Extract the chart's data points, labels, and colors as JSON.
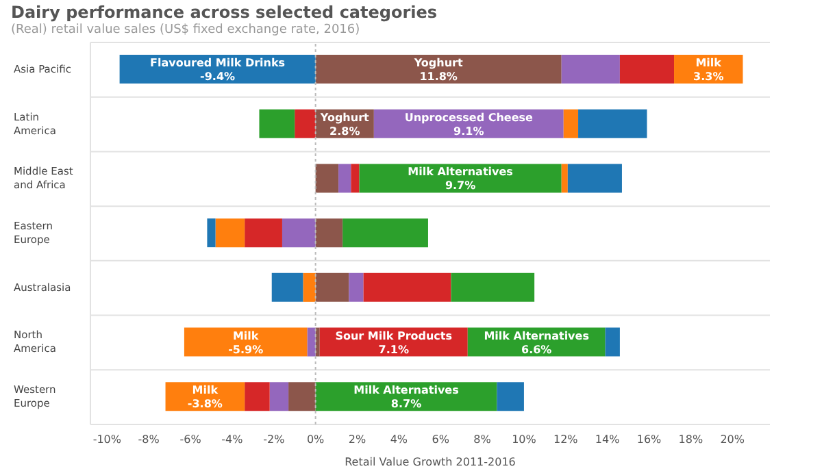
{
  "chart_data": {
    "type": "bar",
    "orientation": "horizontal",
    "stacked": true,
    "title": "Dairy performance across selected categories",
    "subtitle": "(Real) retail value sales (US$ fixed exchange rate, 2016)",
    "xlabel": "Retail Value Growth 2011-2016",
    "categories": [
      "Asia Pacific",
      "Latin America",
      "Middle East and Africa",
      "Eastern Europe",
      "Australasia",
      "North America",
      "Western Europe"
    ],
    "series": [
      {
        "name": "Yoghurt",
        "color": "#8c564b",
        "values": [
          11.8,
          2.8,
          1.1,
          1.3,
          1.6,
          0.2,
          -1.3
        ],
        "value_labels": [
          "11.8%",
          "2.8%",
          null,
          null,
          null,
          null,
          null
        ]
      },
      {
        "name": "Unprocessed Cheese",
        "color": "#9467bd",
        "values": [
          2.8,
          9.1,
          0.6,
          -1.6,
          0.7,
          -0.4,
          -0.9
        ],
        "value_labels": [
          null,
          "9.1%",
          null,
          null,
          null,
          null,
          null
        ]
      },
      {
        "name": "Sour Milk Products",
        "color": "#d62728",
        "values": [
          2.6,
          -1.0,
          0.4,
          -1.8,
          4.2,
          7.1,
          -1.2
        ],
        "value_labels": [
          null,
          null,
          null,
          null,
          null,
          "7.1%",
          null
        ]
      },
      {
        "name": "Milk Alternatives",
        "color": "#2ca02c",
        "values": [
          null,
          -1.7,
          9.7,
          4.1,
          4.0,
          6.6,
          8.7
        ],
        "value_labels": [
          null,
          null,
          "9.7%",
          null,
          null,
          "6.6%",
          "8.7%"
        ]
      },
      {
        "name": "Milk",
        "color": "#ff7f0e",
        "values": [
          3.3,
          0.7,
          0.3,
          -1.4,
          -0.6,
          -5.9,
          -3.8
        ],
        "value_labels": [
          "3.3%",
          null,
          null,
          null,
          null,
          "-5.9%",
          "-3.8%"
        ]
      },
      {
        "name": "Flavoured Milk Drinks",
        "color": "#1f77b4",
        "values": [
          -9.4,
          3.3,
          2.6,
          -0.4,
          -1.5,
          0.7,
          1.3
        ],
        "value_labels": [
          "-9.4%",
          null,
          null,
          null,
          null,
          null,
          null
        ]
      }
    ],
    "xlim": [
      -10.8,
      21.8
    ],
    "xticks": [
      {
        "value": -10,
        "label": "-10%"
      },
      {
        "value": -8,
        "label": "-8%"
      },
      {
        "value": -6,
        "label": "-6%"
      },
      {
        "value": -4,
        "label": "-4%"
      },
      {
        "value": -2,
        "label": "-2%"
      },
      {
        "value": 0,
        "label": "0%"
      },
      {
        "value": 2,
        "label": "2%"
      },
      {
        "value": 4,
        "label": "4%"
      },
      {
        "value": 6,
        "label": "6%"
      },
      {
        "value": 8,
        "label": "8%"
      },
      {
        "value": 10,
        "label": "10%"
      },
      {
        "value": 12,
        "label": "12%"
      },
      {
        "value": 14,
        "label": "14%"
      },
      {
        "value": 16,
        "label": "16%"
      },
      {
        "value": 18,
        "label": "18%"
      },
      {
        "value": 20,
        "label": "20%"
      }
    ],
    "ref_lines": [
      {
        "axis": "x",
        "value": 0,
        "label": null,
        "color": "#bbbbbb",
        "line_style": "dotted"
      }
    ],
    "grid": "y"
  }
}
